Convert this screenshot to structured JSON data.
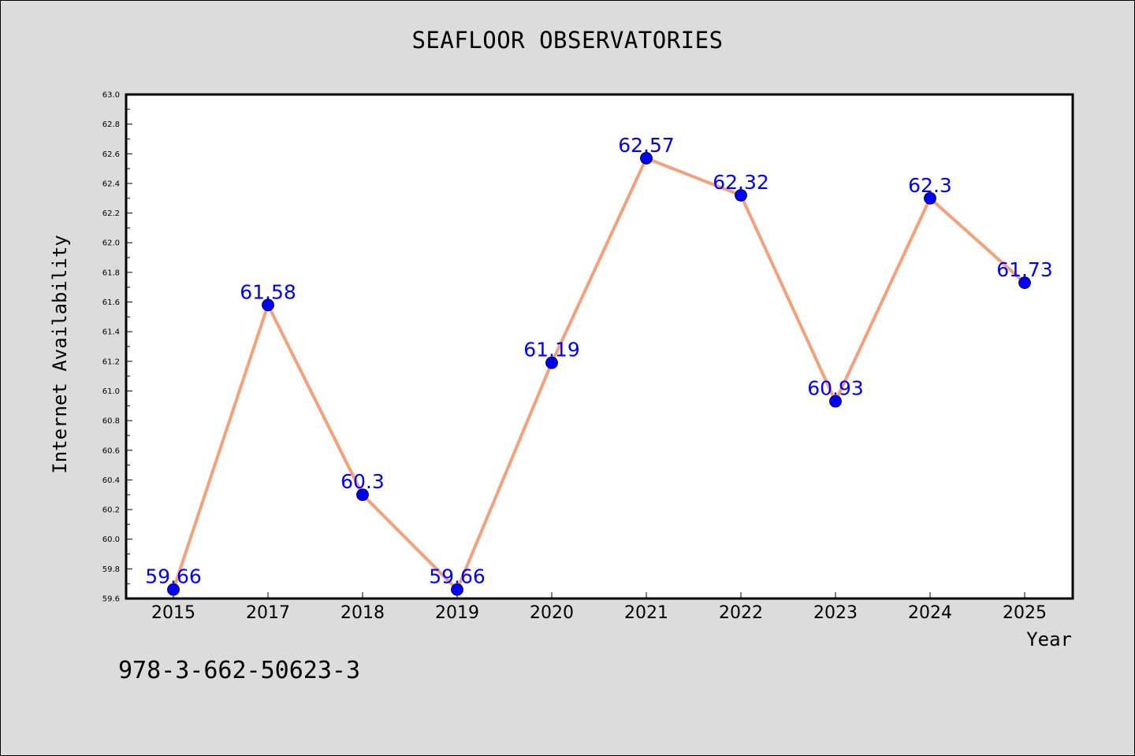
{
  "chart_data": {
    "type": "line",
    "title": "SEAFLOOR OBSERVATORIES",
    "xlabel": "Year",
    "ylabel": "Internet Availability",
    "categories": [
      "2015",
      "2017",
      "2018",
      "2019",
      "2020",
      "2021",
      "2022",
      "2023",
      "2024",
      "2025"
    ],
    "series": [
      {
        "values": [
          59.66,
          61.58,
          60.3,
          59.66,
          61.19,
          62.57,
          62.32,
          60.93,
          62.3,
          61.73
        ],
        "line_color": "#f4a07a",
        "marker_color": "#0000ff"
      }
    ],
    "data_labels": [
      "59.66",
      "61.58",
      "60.3",
      "59.66",
      "61.19",
      "62.57",
      "62.32",
      "60.93",
      "62.3",
      "61.73"
    ],
    "ylim": [
      59.6,
      63.0
    ],
    "y_ticks": [
      "59.6",
      "59.8",
      "60.0",
      "60.2",
      "60.4",
      "60.6",
      "60.8",
      "61.0",
      "61.2",
      "61.4",
      "61.6",
      "61.8",
      "62.0",
      "62.2",
      "62.4",
      "62.6",
      "62.8",
      "63.0"
    ],
    "grid": false,
    "legend": "none"
  },
  "footer": {
    "code": "978-3-662-50623-3"
  },
  "colors": {
    "background": "#dcdcdc",
    "plot_background": "#ffffff",
    "line": "#f4a07a",
    "marker": "#0000ff",
    "label": "#0000ff"
  }
}
